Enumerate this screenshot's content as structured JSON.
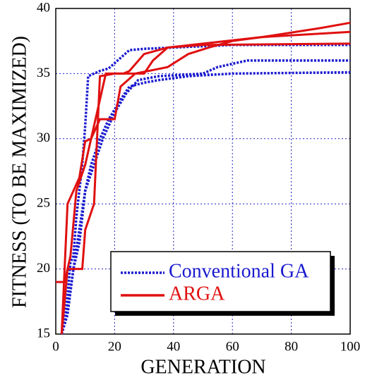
{
  "chart_data": {
    "type": "line",
    "xlabel": "GENERATION",
    "ylabel": "FITNESS (TO BE MAXIMIZED)",
    "xlim": [
      0,
      100
    ],
    "ylim": [
      15,
      40
    ],
    "xticks": [
      0,
      20,
      40,
      60,
      80,
      100
    ],
    "yticks": [
      15,
      20,
      25,
      30,
      35,
      40
    ],
    "grid": true,
    "legend": "lower right",
    "series": [
      {
        "name": "Conventional GA",
        "color": "#1a1ad0",
        "dash": "dotted",
        "runs": [
          {
            "x": [
              2,
              3,
              4,
              5,
              6,
              7,
              8,
              9,
              10,
              11,
              13,
              15,
              18,
              22,
              25,
              30,
              40,
              60,
              100
            ],
            "values": [
              15,
              16,
              18,
              20.5,
              21,
              24,
              26,
              28,
              31,
              34.8,
              35,
              35.2,
              35.4,
              36.2,
              36.8,
              36.9,
              37,
              37.2,
              37.2
            ]
          },
          {
            "x": [
              2,
              4,
              6,
              8,
              10,
              13,
              16,
              20,
              24,
              28,
              35,
              50,
              55,
              65,
              100
            ],
            "values": [
              15,
              16.5,
              20,
              22,
              26,
              28,
              30,
              32,
              33.5,
              34.5,
              34.8,
              35,
              35.5,
              36,
              36
            ]
          },
          {
            "x": [
              2,
              4,
              6,
              8,
              10,
              12,
              15,
              18,
              22,
              25,
              30,
              35,
              45,
              60,
              100
            ],
            "values": [
              15,
              17,
              20,
              23,
              26,
              28,
              30,
              31.5,
              33,
              34,
              34.3,
              34.5,
              34.8,
              35,
              35.1
            ]
          }
        ]
      },
      {
        "name": "ARGA",
        "color": "#e01010",
        "dash": "solid",
        "runs": [
          {
            "x": [
              0,
              3,
              5,
              7,
              10,
              12,
              15,
              17,
              23,
              25,
              30,
              38,
              50,
              70,
              90,
              100
            ],
            "values": [
              19,
              19,
              21,
              26,
              28,
              30,
              33,
              35,
              35,
              35.2,
              36.5,
              37,
              37.3,
              37.8,
              38.5,
              38.9
            ]
          },
          {
            "x": [
              2,
              4,
              6,
              8,
              10,
              12,
              15,
              20,
              22,
              27,
              38,
              45,
              52,
              60,
              70,
              100
            ],
            "values": [
              15,
              25,
              26,
              27,
              29.8,
              30,
              31.5,
              31.5,
              34,
              35,
              35.5,
              36.5,
              37,
              37.5,
              37.8,
              38.2
            ]
          },
          {
            "x": [
              2,
              4,
              9,
              10,
              13,
              15,
              20,
              30,
              33,
              38,
              50,
              100
            ],
            "values": [
              15,
              20,
              20,
              23,
              25,
              34.8,
              35,
              35,
              36,
              37,
              37.2,
              37.3
            ]
          }
        ]
      }
    ]
  }
}
